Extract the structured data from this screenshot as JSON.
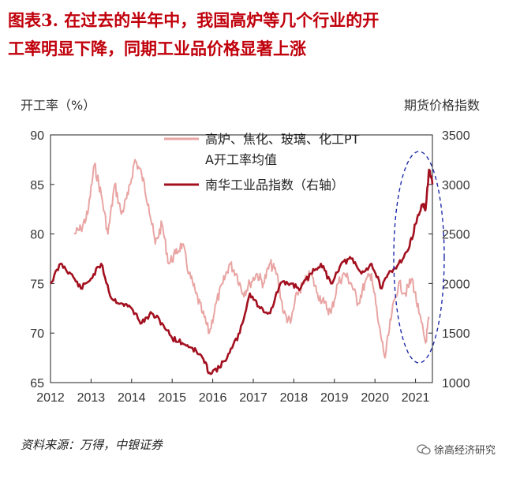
{
  "title": {
    "line1": "图表3.  在过去的半年中，我国高炉等几个行业的开",
    "line2": "工率明显下降，同期工业品价格显著上涨"
  },
  "source": "资料来源：万得，中银证券",
  "watermark": "徐高经济研究",
  "colors": {
    "title": "#c0000b",
    "series_operating": "#e8a5a3",
    "series_index": "#a3101f",
    "ellipse": "#1f2aa8"
  },
  "chart_data": {
    "type": "line",
    "ylabel_left": "开工率（%）",
    "ylabel_right": "期货价格指数",
    "x_ticks": [
      "2012",
      "2013",
      "2014",
      "2015",
      "2016",
      "2017",
      "2018",
      "2019",
      "2020",
      "2021"
    ],
    "xlim": [
      "2012-01",
      "2021-06"
    ],
    "ylim_left": [
      65,
      90
    ],
    "yticks_left": [
      65,
      70,
      75,
      80,
      85,
      90
    ],
    "ylim_right": [
      1000,
      3500
    ],
    "yticks_right": [
      1000,
      1500,
      2000,
      2500,
      3000,
      3500
    ],
    "legend_position": "top-right",
    "annotation": "dashed ellipse highlighting 2020-H2 to 2021",
    "series": [
      {
        "name": "高炉、焦化、玻璃、化工PTA开工率均值",
        "axis": "left",
        "x": [
          "2012-08",
          "2012-10",
          "2012-12",
          "2013-02",
          "2013-04",
          "2013-06",
          "2013-08",
          "2013-10",
          "2013-12",
          "2014-02",
          "2014-04",
          "2014-06",
          "2014-08",
          "2014-10",
          "2014-12",
          "2015-02",
          "2015-04",
          "2015-06",
          "2015-08",
          "2015-10",
          "2015-12",
          "2016-02",
          "2016-04",
          "2016-06",
          "2016-08",
          "2016-10",
          "2016-12",
          "2017-02",
          "2017-04",
          "2017-06",
          "2017-08",
          "2017-10",
          "2017-12",
          "2018-02",
          "2018-04",
          "2018-06",
          "2018-08",
          "2018-10",
          "2018-12",
          "2019-02",
          "2019-04",
          "2019-06",
          "2019-08",
          "2019-10",
          "2019-12",
          "2020-02",
          "2020-04",
          "2020-06",
          "2020-08",
          "2020-10",
          "2020-12",
          "2021-02",
          "2021-04",
          "2021-05"
        ],
        "values": [
          80,
          80.5,
          82,
          87,
          84,
          80,
          85,
          82,
          84,
          87.5,
          86,
          83,
          79,
          81,
          77,
          78,
          79,
          76,
          74,
          72,
          70,
          73,
          75,
          77,
          76,
          74,
          75,
          76,
          75,
          77,
          76,
          72,
          71,
          74,
          75,
          76,
          74,
          73,
          72,
          75,
          76,
          75,
          73,
          75,
          76,
          71,
          67.5,
          72,
          75,
          74,
          75.5,
          72,
          69,
          71.5
        ]
      },
      {
        "name": "南华工业品指数（右轴）",
        "axis": "right",
        "x": [
          "2012-01",
          "2012-04",
          "2012-07",
          "2012-10",
          "2013-01",
          "2013-04",
          "2013-07",
          "2013-10",
          "2014-01",
          "2014-04",
          "2014-07",
          "2014-10",
          "2015-01",
          "2015-04",
          "2015-07",
          "2015-10",
          "2015-12",
          "2016-03",
          "2016-06",
          "2016-09",
          "2016-12",
          "2017-03",
          "2017-06",
          "2017-09",
          "2017-12",
          "2018-03",
          "2018-06",
          "2018-09",
          "2018-12",
          "2019-03",
          "2019-06",
          "2019-09",
          "2019-12",
          "2020-03",
          "2020-05",
          "2020-08",
          "2020-11",
          "2021-01",
          "2021-03",
          "2021-04",
          "2021-05",
          "2021-06"
        ],
        "values": [
          2000,
          2200,
          2100,
          1950,
          2050,
          2200,
          1850,
          1800,
          1750,
          1600,
          1700,
          1600,
          1450,
          1400,
          1350,
          1250,
          1100,
          1150,
          1300,
          1500,
          1900,
          1750,
          1700,
          2000,
          2000,
          1950,
          2100,
          2200,
          2000,
          2200,
          2250,
          2100,
          2200,
          1950,
          2100,
          2200,
          2350,
          2600,
          2800,
          2750,
          3150,
          3000
        ]
      }
    ]
  }
}
